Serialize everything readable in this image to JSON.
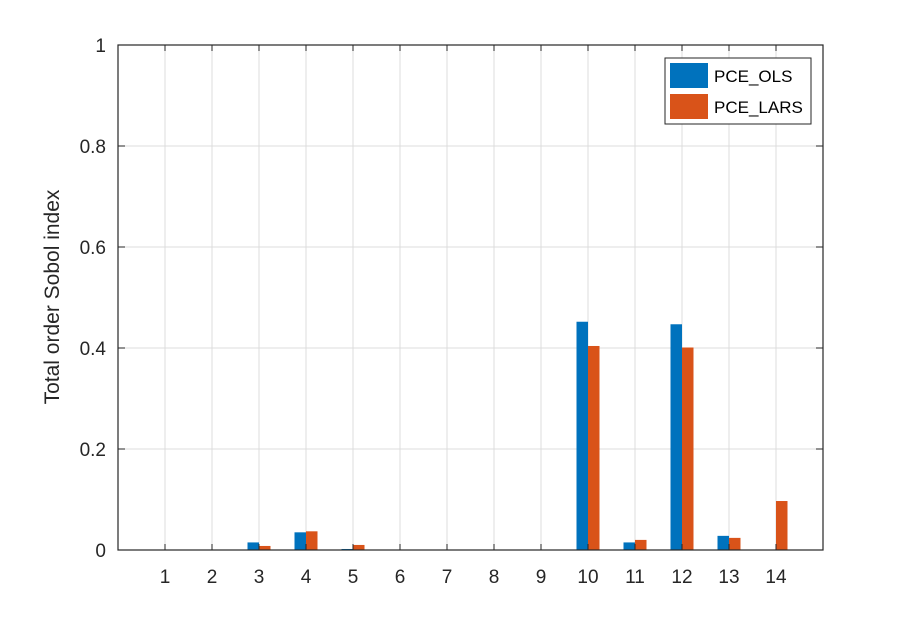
{
  "chart_data": {
    "type": "bar",
    "title": "",
    "xlabel": "",
    "ylabel": "Total order Sobol index",
    "ylim": [
      0,
      1
    ],
    "yticks": [
      "0",
      "0.2",
      "0.4",
      "0.6",
      "0.8",
      "1"
    ],
    "categories": [
      "1",
      "2",
      "3",
      "4",
      "5",
      "6",
      "7",
      "8",
      "9",
      "10",
      "11",
      "12",
      "13",
      "14"
    ],
    "grid": true,
    "legend_position": "top-right",
    "series": [
      {
        "name": "PCE_OLS",
        "color": "#0072BD",
        "values": [
          0,
          0,
          0.015,
          0.035,
          0.002,
          0,
          0,
          0,
          0,
          0.452,
          0.015,
          0.447,
          0.028,
          0
        ]
      },
      {
        "name": "PCE_LARS",
        "color": "#D95319",
        "values": [
          0,
          0,
          0.008,
          0.037,
          0.01,
          0,
          0,
          0,
          0,
          0.404,
          0.02,
          0.401,
          0.024,
          0.097
        ]
      }
    ]
  }
}
